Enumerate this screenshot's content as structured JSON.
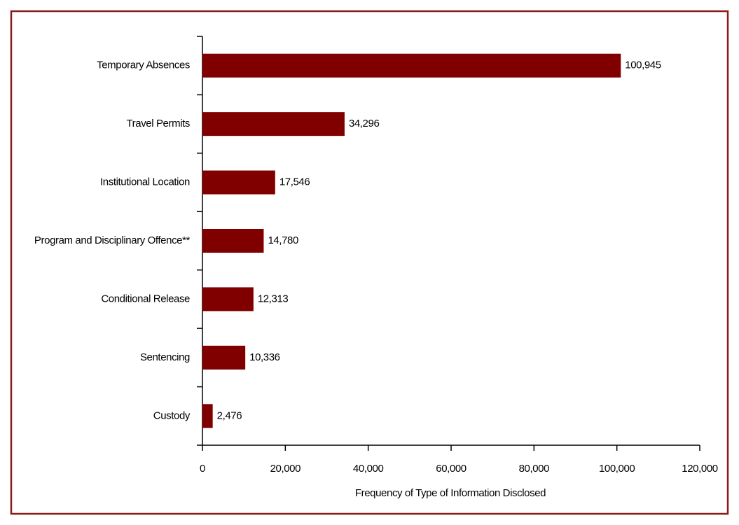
{
  "chart_data": {
    "type": "barh",
    "categories": [
      "Temporary Absences",
      "Travel Permits",
      "Institutional Location",
      "Program and Disciplinary Offence**",
      "Conditional Release",
      "Sentencing",
      "Custody"
    ],
    "values": [
      100945,
      34296,
      17546,
      14780,
      12313,
      10336,
      2476
    ],
    "value_labels": [
      "100,945",
      "34,296",
      "17,546",
      "14,780",
      "12,313",
      "10,336",
      "2,476"
    ],
    "color": "#800000",
    "x_label": "Frequency of Type of Information Disclosed",
    "xlim": [
      0,
      120000
    ],
    "xticks": [
      0,
      {
        "value": 20000,
        "label": "20,000"
      },
      {
        "value": 40000,
        "label": "40,000"
      },
      {
        "value": 60000,
        "label": "60,000"
      },
      {
        "value": 80000,
        "label": "80,000"
      },
      {
        "value": 100000,
        "label": "100,000"
      },
      {
        "value": 120000,
        "label": "120,000"
      }
    ]
  }
}
